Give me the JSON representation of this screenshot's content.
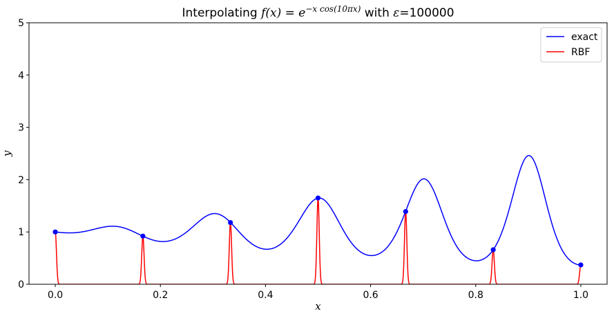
{
  "chart_data": {
    "type": "line",
    "title": {
      "prefix": "Interpolating ",
      "func_lhs": "f(x) = e",
      "exponent": "−x cos(10πx)",
      "middle": " with ",
      "eps_symbol": "ε",
      "eps_rest": "=100000"
    },
    "xlabel": "x",
    "ylabel": "y",
    "xlim": [
      -0.05,
      1.05
    ],
    "ylim": [
      0,
      5
    ],
    "xticks": [
      {
        "value": 0.0,
        "label": "0.0"
      },
      {
        "value": 0.2,
        "label": "0.2"
      },
      {
        "value": 0.4,
        "label": "0.4"
      },
      {
        "value": 0.6,
        "label": "0.6"
      },
      {
        "value": 0.8,
        "label": "0.8"
      },
      {
        "value": 1.0,
        "label": "1.0"
      }
    ],
    "yticks": [
      {
        "value": 0,
        "label": "0"
      },
      {
        "value": 1,
        "label": "1"
      },
      {
        "value": 2,
        "label": "2"
      },
      {
        "value": 3,
        "label": "3"
      },
      {
        "value": 4,
        "label": "4"
      },
      {
        "value": 5,
        "label": "5"
      }
    ],
    "grid": false,
    "legend": "top-right",
    "function": "exp(-x*cos(10*pi*x))",
    "epsilon": 100000,
    "series": [
      {
        "name": "exact",
        "color": "#0000ff",
        "kind": "function"
      },
      {
        "name": "RBF",
        "color": "#ff0000",
        "kind": "gaussian-rbf"
      }
    ],
    "nodes": {
      "color": "#0000ff",
      "x": [
        0.0,
        0.1667,
        0.3333,
        0.5,
        0.6667,
        0.8333,
        1.0
      ],
      "y": [
        1.0,
        0.92,
        1.18,
        1.65,
        1.39,
        0.66,
        0.37
      ]
    }
  }
}
